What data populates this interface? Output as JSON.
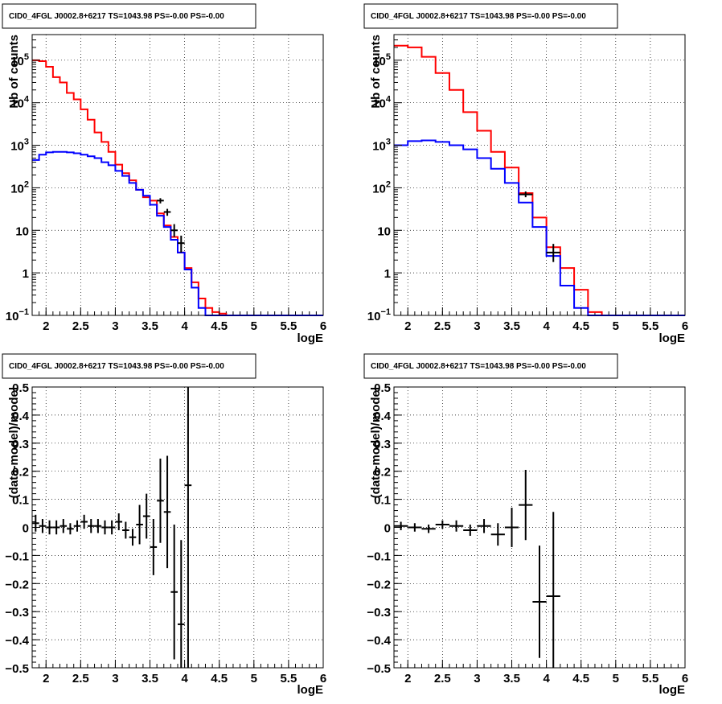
{
  "colors": {
    "data": "#000000",
    "model_total": "#ff0000",
    "model_source": "#0000ff",
    "frame": "#000000",
    "grid": "#000000"
  },
  "chart_data": [
    {
      "type": "line",
      "panel": "top-left",
      "title": "CID0_4FGL J0002.8+6217 TS=1043.98 PS=-0.00 PS=-0.00",
      "xlabel": "logE",
      "ylabel": "Nb of counts",
      "xlim": [
        1.8,
        6
      ],
      "ylim": [
        0.1,
        400000
      ],
      "yscale": "log",
      "grid": true,
      "xticks": [
        "2",
        "2.5",
        "3",
        "3.5",
        "4",
        "4.5",
        "5",
        "5.5",
        "6"
      ],
      "yticks": [
        {
          "value": 0.1,
          "base": "10",
          "exp": "−1"
        },
        {
          "value": 1,
          "label": "1"
        },
        {
          "value": 10,
          "label": "10"
        },
        {
          "value": 100,
          "base": "10",
          "exp": "2"
        },
        {
          "value": 1000,
          "base": "10",
          "exp": "3"
        },
        {
          "value": 10000,
          "base": "10",
          "exp": "4"
        },
        {
          "value": 100000,
          "base": "10",
          "exp": "5"
        }
      ],
      "series": [
        {
          "role": "model_total",
          "bin_edges": [
            1.8,
            1.9,
            2.0,
            2.1,
            2.2,
            2.3,
            2.4,
            2.5,
            2.6,
            2.7,
            2.8,
            2.9,
            3.0,
            3.1,
            3.2,
            3.3,
            3.4,
            3.5,
            3.6,
            3.7,
            3.8,
            3.9,
            4.0,
            4.1,
            4.2,
            4.3,
            4.4,
            4.5,
            4.6,
            4.7,
            4.8,
            4.9,
            5.0,
            5.1,
            5.2,
            5.3,
            5.4,
            5.5,
            5.6,
            5.7,
            5.8,
            5.9,
            6.0
          ],
          "values": [
            100000,
            95000,
            70000,
            40000,
            30000,
            17000,
            12000,
            7000,
            4000,
            2000,
            1200,
            700,
            350,
            220,
            150,
            90,
            60,
            50,
            25,
            13,
            7,
            3,
            1.3,
            0.6,
            0.25,
            0.15,
            0.12,
            0.11,
            0.1,
            0.1,
            0.1,
            0.1,
            0.1,
            0.1,
            0.1,
            0.1,
            0.1,
            0.1,
            0.1,
            0.1,
            0.1,
            0.1
          ]
        },
        {
          "role": "model_source",
          "bin_edges": [
            1.8,
            1.9,
            2.0,
            2.1,
            2.2,
            2.3,
            2.4,
            2.5,
            2.6,
            2.7,
            2.8,
            2.9,
            3.0,
            3.1,
            3.2,
            3.3,
            3.4,
            3.5,
            3.6,
            3.7,
            3.8,
            3.9,
            4.0,
            4.1,
            4.2,
            4.3,
            4.4,
            4.5,
            4.6,
            4.7,
            4.8,
            4.9,
            5.0,
            5.1,
            5.2,
            5.3,
            5.4,
            5.5,
            5.6,
            5.7,
            5.8,
            5.9,
            6.0
          ],
          "values": [
            450,
            600,
            680,
            700,
            700,
            680,
            650,
            600,
            550,
            500,
            400,
            340,
            250,
            190,
            130,
            90,
            65,
            40,
            22,
            12,
            6,
            3,
            1.2,
            0.45,
            0.15,
            0.1,
            0.1,
            0.1,
            0.1,
            0.1,
            0.1,
            0.1,
            0.1,
            0.1,
            0.1,
            0.1,
            0.1,
            0.1,
            0.1,
            0.1,
            0.1,
            0.1
          ]
        },
        {
          "role": "data",
          "points": [
            {
              "x": 3.65,
              "y": 50,
              "ylo": 43,
              "yhi": 57
            },
            {
              "x": 3.75,
              "y": 27,
              "ylo": 22,
              "yhi": 32
            },
            {
              "x": 3.85,
              "y": 10,
              "ylo": 7,
              "yhi": 14
            },
            {
              "x": 3.95,
              "y": 5,
              "ylo": 3,
              "yhi": 7.5
            }
          ],
          "xerr": 0.05
        }
      ]
    },
    {
      "type": "line",
      "panel": "top-right",
      "title": "CID0_4FGL J0002.8+6217 TS=1043.98 PS=-0.00 PS=-0.00",
      "xlabel": "logE",
      "ylabel": "Nb of counts",
      "xlim": [
        1.8,
        6
      ],
      "ylim": [
        0.1,
        400000
      ],
      "yscale": "log",
      "grid": true,
      "xticks": [
        "2",
        "2.5",
        "3",
        "3.5",
        "4",
        "4.5",
        "5",
        "5.5",
        "6"
      ],
      "yticks": [
        {
          "value": 0.1,
          "base": "10",
          "exp": "−1"
        },
        {
          "value": 1,
          "label": "1"
        },
        {
          "value": 10,
          "label": "10"
        },
        {
          "value": 100,
          "base": "10",
          "exp": "2"
        },
        {
          "value": 1000,
          "base": "10",
          "exp": "3"
        },
        {
          "value": 10000,
          "base": "10",
          "exp": "4"
        },
        {
          "value": 100000,
          "base": "10",
          "exp": "5"
        }
      ],
      "series": [
        {
          "role": "model_total",
          "bin_edges": [
            1.8,
            2.0,
            2.2,
            2.4,
            2.6,
            2.8,
            3.0,
            3.2,
            3.4,
            3.6,
            3.8,
            4.0,
            4.2,
            4.4,
            4.6,
            4.8,
            5.0,
            5.2,
            5.4,
            5.6,
            5.8,
            6.0
          ],
          "values": [
            220000,
            200000,
            120000,
            50000,
            20000,
            6000,
            2200,
            700,
            300,
            75,
            20,
            4,
            1.3,
            0.4,
            0.12,
            0.1,
            0.1,
            0.1,
            0.1,
            0.1,
            0.1
          ]
        },
        {
          "role": "model_source",
          "bin_edges": [
            1.8,
            2.0,
            2.2,
            2.4,
            2.6,
            2.8,
            3.0,
            3.2,
            3.4,
            3.6,
            3.8,
            4.0,
            4.2,
            4.4,
            4.6,
            4.8,
            5.0,
            5.2,
            5.4,
            5.6,
            5.8,
            6.0
          ],
          "values": [
            1000,
            1250,
            1300,
            1200,
            1000,
            800,
            500,
            280,
            130,
            45,
            12,
            2.5,
            0.5,
            0.15,
            0.1,
            0.1,
            0.1,
            0.1,
            0.1,
            0.1,
            0.1
          ]
        },
        {
          "role": "data",
          "points": [
            {
              "x": 3.7,
              "y": 70,
              "ylo": 60,
              "yhi": 82
            },
            {
              "x": 4.1,
              "y": 3,
              "ylo": 1.8,
              "yhi": 4.8
            }
          ],
          "xerr": 0.1
        }
      ]
    },
    {
      "type": "scatter",
      "panel": "bottom-left",
      "title": "CID0_4FGL J0002.8+6217 TS=1043.98 PS=-0.00 PS=-0.00",
      "xlabel": "logE",
      "ylabel": "(data-model)/model",
      "xlim": [
        1.8,
        6
      ],
      "ylim": [
        -0.5,
        0.5
      ],
      "yscale": "linear",
      "grid": true,
      "xticks": [
        "2",
        "2.5",
        "3",
        "3.5",
        "4",
        "4.5",
        "5",
        "5.5",
        "6"
      ],
      "yticks": [
        {
          "value": 0.5,
          "label": "0.5"
        },
        {
          "value": 0.4,
          "label": "0.4"
        },
        {
          "value": 0.3,
          "label": "0.3"
        },
        {
          "value": 0.2,
          "label": "0.2"
        },
        {
          "value": 0.1,
          "label": "0.1"
        },
        {
          "value": 0,
          "label": "0"
        },
        {
          "value": -0.1,
          "label": "−0.1"
        },
        {
          "value": -0.2,
          "label": "−0.2"
        },
        {
          "value": -0.3,
          "label": "−0.3"
        },
        {
          "value": -0.4,
          "label": "−0.4"
        },
        {
          "value": -0.5,
          "label": "−0.5"
        }
      ],
      "series": [
        {
          "role": "data",
          "xerr": 0.05,
          "points": [
            {
              "x": 1.85,
              "y": 0.015,
              "err": 0.03
            },
            {
              "x": 1.95,
              "y": 0.005,
              "err": 0.025
            },
            {
              "x": 2.05,
              "y": 0.0,
              "err": 0.025
            },
            {
              "x": 2.15,
              "y": 0.0,
              "err": 0.025
            },
            {
              "x": 2.25,
              "y": 0.005,
              "err": 0.025
            },
            {
              "x": 2.35,
              "y": -0.005,
              "err": 0.02
            },
            {
              "x": 2.45,
              "y": 0.005,
              "err": 0.02
            },
            {
              "x": 2.55,
              "y": 0.02,
              "err": 0.025
            },
            {
              "x": 2.65,
              "y": 0.005,
              "err": 0.025
            },
            {
              "x": 2.75,
              "y": 0.005,
              "err": 0.025
            },
            {
              "x": 2.85,
              "y": 0.0,
              "err": 0.025
            },
            {
              "x": 2.95,
              "y": 0.0,
              "err": 0.025
            },
            {
              "x": 3.05,
              "y": 0.02,
              "err": 0.03
            },
            {
              "x": 3.15,
              "y": -0.01,
              "err": 0.03
            },
            {
              "x": 3.25,
              "y": -0.035,
              "err": 0.03
            },
            {
              "x": 3.35,
              "y": 0.01,
              "err": 0.07
            },
            {
              "x": 3.45,
              "y": 0.04,
              "err": 0.08
            },
            {
              "x": 3.55,
              "y": -0.07,
              "err": 0.1
            },
            {
              "x": 3.65,
              "y": 0.095,
              "err": 0.15
            },
            {
              "x": 3.75,
              "y": 0.055,
              "err": 0.2
            },
            {
              "x": 3.85,
              "y": -0.23,
              "err": 0.24
            },
            {
              "x": 3.95,
              "y": -0.345,
              "err": 0.3
            },
            {
              "x": 4.05,
              "y": 0.15,
              "err": 0.7
            }
          ]
        }
      ]
    },
    {
      "type": "scatter",
      "panel": "bottom-right",
      "title": "CID0_4FGL J0002.8+6217 TS=1043.98 PS=-0.00 PS=-0.00",
      "xlabel": "logE",
      "ylabel": "(data-model)/model",
      "xlim": [
        1.8,
        6
      ],
      "ylim": [
        -0.5,
        0.5
      ],
      "yscale": "linear",
      "grid": true,
      "xticks": [
        "2",
        "2.5",
        "3",
        "3.5",
        "4",
        "4.5",
        "5",
        "5.5",
        "6"
      ],
      "yticks": [
        {
          "value": 0.5,
          "label": "0.5"
        },
        {
          "value": 0.4,
          "label": "0.4"
        },
        {
          "value": 0.3,
          "label": "0.3"
        },
        {
          "value": 0.2,
          "label": "0.2"
        },
        {
          "value": 0.1,
          "label": "0.1"
        },
        {
          "value": 0,
          "label": "0"
        },
        {
          "value": -0.1,
          "label": "−0.1"
        },
        {
          "value": -0.2,
          "label": "−0.2"
        },
        {
          "value": -0.3,
          "label": "−0.3"
        },
        {
          "value": -0.4,
          "label": "−0.4"
        },
        {
          "value": -0.5,
          "label": "−0.5"
        }
      ],
      "series": [
        {
          "role": "data",
          "xerr": 0.1,
          "points": [
            {
              "x": 1.9,
              "y": 0.005,
              "err": 0.015
            },
            {
              "x": 2.1,
              "y": 0.0,
              "err": 0.015
            },
            {
              "x": 2.3,
              "y": -0.005,
              "err": 0.015
            },
            {
              "x": 2.5,
              "y": 0.01,
              "err": 0.015
            },
            {
              "x": 2.7,
              "y": 0.005,
              "err": 0.02
            },
            {
              "x": 2.9,
              "y": -0.01,
              "err": 0.02
            },
            {
              "x": 3.1,
              "y": 0.005,
              "err": 0.025
            },
            {
              "x": 3.3,
              "y": -0.025,
              "err": 0.04
            },
            {
              "x": 3.5,
              "y": 0.0,
              "err": 0.07
            },
            {
              "x": 3.7,
              "y": 0.08,
              "err": 0.125
            },
            {
              "x": 3.9,
              "y": -0.265,
              "err": 0.2
            },
            {
              "x": 4.1,
              "y": -0.245,
              "err": 0.3
            }
          ]
        }
      ]
    }
  ]
}
